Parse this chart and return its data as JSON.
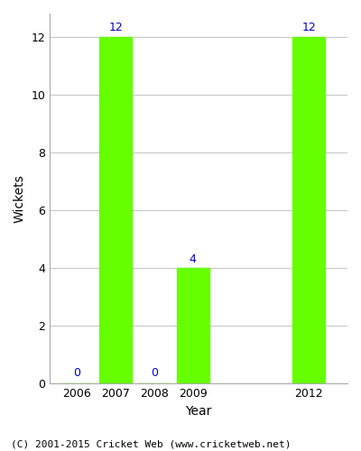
{
  "years": [
    2006,
    2007,
    2008,
    2009,
    2012
  ],
  "wickets": [
    0,
    12,
    0,
    4,
    12
  ],
  "bar_color": "#66ff00",
  "bar_width": 0.85,
  "xlabel": "Year",
  "ylabel": "Wickets",
  "ylim": [
    0,
    12.8
  ],
  "yticks": [
    0,
    2,
    4,
    6,
    8,
    10,
    12
  ],
  "xlim": [
    2005.3,
    2013.0
  ],
  "label_color": "#0000cc",
  "label_fontsize": 9,
  "axis_label_fontsize": 10,
  "tick_fontsize": 9,
  "footer": "(C) 2001-2015 Cricket Web (www.cricketweb.net)",
  "footer_fontsize": 8,
  "background_color": "#ffffff",
  "grid_color": "#c8c8c8"
}
